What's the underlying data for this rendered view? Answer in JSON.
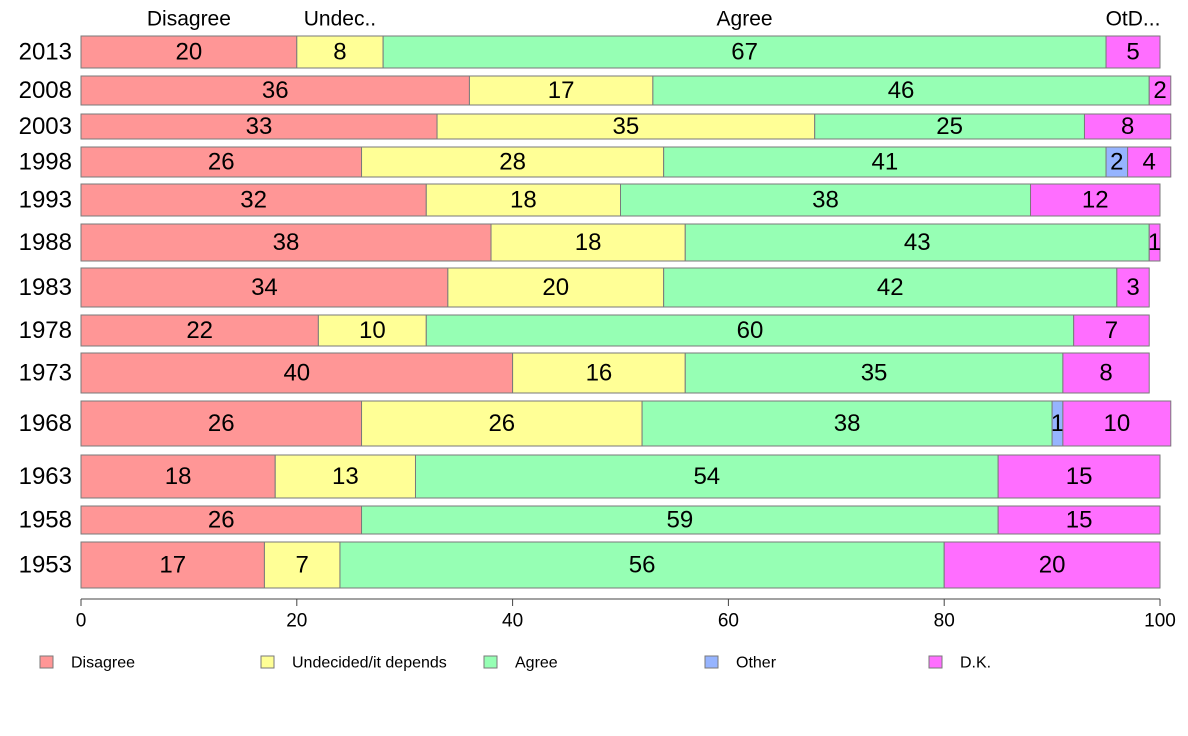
{
  "chart_data": {
    "type": "bar",
    "orientation": "horizontal",
    "stacked": true,
    "categories": [
      "2013",
      "2008",
      "2003",
      "1998",
      "1993",
      "1988",
      "1983",
      "1978",
      "1973",
      "1968",
      "1963",
      "1958",
      "1953"
    ],
    "series": [
      {
        "name": "Disagree",
        "color": "#FF9696",
        "values": [
          20,
          36,
          33,
          26,
          32,
          38,
          34,
          22,
          40,
          26,
          18,
          26,
          17
        ]
      },
      {
        "name": "Undecided/it depends",
        "color": "#FFFF96",
        "values": [
          8,
          17,
          35,
          28,
          18,
          18,
          20,
          10,
          16,
          26,
          13,
          0,
          7
        ]
      },
      {
        "name": "Agree",
        "color": "#96FFB4",
        "values": [
          67,
          46,
          25,
          41,
          38,
          43,
          42,
          60,
          35,
          38,
          54,
          59,
          56
        ]
      },
      {
        "name": "Other",
        "color": "#96B4FF",
        "values": [
          0,
          0,
          0,
          2,
          0,
          0,
          0,
          0,
          0,
          1,
          0,
          0,
          0
        ]
      },
      {
        "name": "D.K.",
        "color": "#FF6EFF",
        "values": [
          5,
          2,
          8,
          4,
          12,
          1,
          3,
          7,
          8,
          10,
          15,
          15,
          20
        ]
      }
    ],
    "top_labels": [
      "Disagree",
      "Undec..",
      "Agree",
      "",
      "OtD..."
    ],
    "xlim": [
      0,
      100
    ],
    "xticks": [
      "0",
      "20",
      "40",
      "60",
      "80",
      "100"
    ],
    "grid": false,
    "legend_position": "bottom"
  }
}
